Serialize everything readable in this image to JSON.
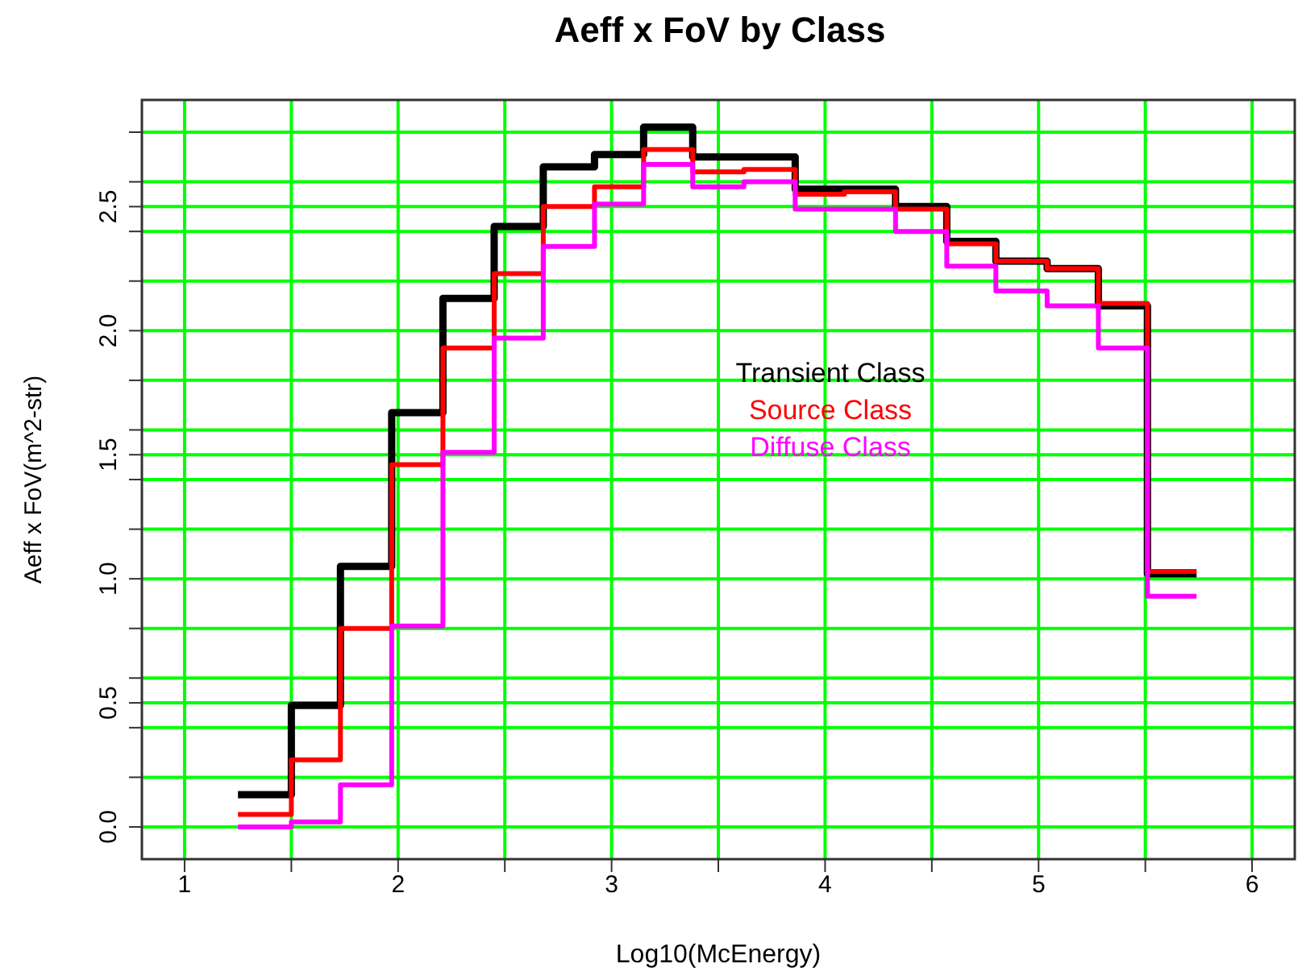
{
  "chart_data": {
    "type": "step",
    "title": "Aeff x FoV by Class",
    "xlabel": "Log10(McEnergy)",
    "ylabel": "Aeff x FoV(m^2-str)",
    "x": [
      1.25,
      1.5,
      1.73,
      1.97,
      2.21,
      2.45,
      2.68,
      2.92,
      3.15,
      3.38,
      3.62,
      3.86,
      4.09,
      4.33,
      4.57,
      4.8,
      5.04,
      5.28,
      5.51,
      5.74
    ],
    "series": [
      {
        "name": "Transient Class",
        "color": "#000000",
        "values": [
          0.13,
          0.49,
          1.05,
          1.67,
          2.13,
          2.42,
          2.66,
          2.71,
          2.82,
          2.7,
          2.7,
          2.57,
          2.57,
          2.5,
          2.36,
          2.28,
          2.25,
          2.1,
          1.02,
          1.02
        ]
      },
      {
        "name": "Source Class",
        "color": "#ff0000",
        "values": [
          0.05,
          0.27,
          0.8,
          1.46,
          1.93,
          2.23,
          2.5,
          2.58,
          2.73,
          2.64,
          2.65,
          2.55,
          2.56,
          2.49,
          2.35,
          2.28,
          2.25,
          2.11,
          1.03,
          1.03
        ]
      },
      {
        "name": "Diffuse Class",
        "color": "#ff00ff",
        "values": [
          0.0,
          0.02,
          0.17,
          0.81,
          1.51,
          1.97,
          2.34,
          2.51,
          2.67,
          2.58,
          2.6,
          2.49,
          2.49,
          2.4,
          2.26,
          2.16,
          2.1,
          1.93,
          0.93,
          0.93
        ]
      }
    ],
    "xlim": [
      0.8,
      6.2
    ],
    "xticks": [
      1,
      {
        "value": 1.5,
        "label": null
      },
      2,
      {
        "value": 2.5,
        "label": null
      },
      3,
      {
        "value": 3.5,
        "label": null
      },
      4,
      {
        "value": 4.5,
        "label": null
      },
      5,
      {
        "value": 5.5,
        "label": null
      },
      6
    ],
    "ylim": [
      -0.13,
      2.93
    ],
    "yticks": [
      {
        "value": 0,
        "label": "0.0"
      },
      {
        "value": 0.2,
        "label": null
      },
      {
        "value": 0.4,
        "label": null
      },
      {
        "value": 0.5,
        "label": "0.5"
      },
      {
        "value": 0.6,
        "label": null
      },
      {
        "value": 0.8,
        "label": null
      },
      {
        "value": 1,
        "label": "1.0"
      },
      {
        "value": 1.2,
        "label": null
      },
      {
        "value": 1.4,
        "label": null
      },
      {
        "value": 1.5,
        "label": "1.5"
      },
      {
        "value": 1.6,
        "label": null
      },
      {
        "value": 1.8,
        "label": null
      },
      {
        "value": 2,
        "label": "2.0"
      },
      {
        "value": 2.2,
        "label": null
      },
      {
        "value": 2.4,
        "label": null
      },
      {
        "value": 2.5,
        "label": "2.5"
      },
      {
        "value": 2.6,
        "label": null
      },
      {
        "value": 2.8,
        "label": null
      }
    ],
    "grid": true,
    "legend": "center",
    "marker": "none",
    "line_style": "solid"
  }
}
